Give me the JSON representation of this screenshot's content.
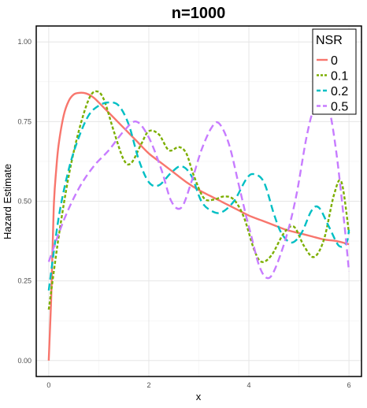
{
  "chart_data": {
    "type": "line",
    "title": "n=1000",
    "xlabel": "x",
    "ylabel": "Hazard Estimate",
    "xlim": [
      -0.25,
      6.25
    ],
    "ylim": [
      -0.05,
      1.05
    ],
    "x_ticks": [
      "0",
      "2",
      "4",
      "6"
    ],
    "y_ticks": [
      "0.00",
      "0.25",
      "0.50",
      "0.75",
      "1.00"
    ],
    "grid": true,
    "legend": {
      "title": "NSR",
      "position": "top-right"
    },
    "series": [
      {
        "name": "0",
        "color": "#F8766D",
        "dash": "solid",
        "points": [
          [
            0.0,
            0.0
          ],
          [
            0.05,
            0.2
          ],
          [
            0.1,
            0.48
          ],
          [
            0.15,
            0.6
          ],
          [
            0.2,
            0.68
          ],
          [
            0.3,
            0.77
          ],
          [
            0.4,
            0.815
          ],
          [
            0.5,
            0.835
          ],
          [
            0.6,
            0.84
          ],
          [
            0.7,
            0.84
          ],
          [
            0.8,
            0.835
          ],
          [
            0.9,
            0.825
          ],
          [
            1.0,
            0.81
          ],
          [
            1.25,
            0.77
          ],
          [
            1.5,
            0.73
          ],
          [
            1.75,
            0.69
          ],
          [
            2.0,
            0.65
          ],
          [
            2.25,
            0.62
          ],
          [
            2.5,
            0.59
          ],
          [
            2.75,
            0.56
          ],
          [
            3.0,
            0.535
          ],
          [
            3.25,
            0.515
          ],
          [
            3.5,
            0.495
          ],
          [
            3.75,
            0.475
          ],
          [
            4.0,
            0.455
          ],
          [
            4.25,
            0.44
          ],
          [
            4.5,
            0.425
          ],
          [
            4.75,
            0.41
          ],
          [
            5.0,
            0.4
          ],
          [
            5.25,
            0.39
          ],
          [
            5.5,
            0.38
          ],
          [
            5.75,
            0.375
          ],
          [
            6.0,
            0.365
          ]
        ]
      },
      {
        "name": "0.1",
        "color": "#7CAE00",
        "dash": "dotted",
        "points": [
          [
            0.0,
            0.16
          ],
          [
            0.2,
            0.39
          ],
          [
            0.4,
            0.58
          ],
          [
            0.6,
            0.72
          ],
          [
            0.8,
            0.82
          ],
          [
            0.95,
            0.845
          ],
          [
            1.1,
            0.82
          ],
          [
            1.3,
            0.72
          ],
          [
            1.5,
            0.63
          ],
          [
            1.65,
            0.62
          ],
          [
            1.85,
            0.68
          ],
          [
            2.0,
            0.72
          ],
          [
            2.2,
            0.71
          ],
          [
            2.4,
            0.66
          ],
          [
            2.6,
            0.67
          ],
          [
            2.75,
            0.65
          ],
          [
            2.9,
            0.58
          ],
          [
            3.1,
            0.51
          ],
          [
            3.3,
            0.505
          ],
          [
            3.5,
            0.515
          ],
          [
            3.7,
            0.505
          ],
          [
            3.9,
            0.45
          ],
          [
            4.1,
            0.35
          ],
          [
            4.25,
            0.31
          ],
          [
            4.45,
            0.33
          ],
          [
            4.7,
            0.4
          ],
          [
            4.9,
            0.42
          ],
          [
            5.1,
            0.36
          ],
          [
            5.3,
            0.325
          ],
          [
            5.5,
            0.38
          ],
          [
            5.7,
            0.52
          ],
          [
            5.85,
            0.56
          ],
          [
            6.0,
            0.4
          ]
        ]
      },
      {
        "name": "0.2",
        "color": "#00BFC4",
        "dash": "dashed",
        "points": [
          [
            0.0,
            0.22
          ],
          [
            0.2,
            0.45
          ],
          [
            0.4,
            0.6
          ],
          [
            0.6,
            0.7
          ],
          [
            0.8,
            0.77
          ],
          [
            1.0,
            0.8
          ],
          [
            1.2,
            0.81
          ],
          [
            1.4,
            0.8
          ],
          [
            1.6,
            0.74
          ],
          [
            1.8,
            0.63
          ],
          [
            2.0,
            0.56
          ],
          [
            2.2,
            0.55
          ],
          [
            2.45,
            0.59
          ],
          [
            2.65,
            0.61
          ],
          [
            2.85,
            0.58
          ],
          [
            3.05,
            0.5
          ],
          [
            3.25,
            0.47
          ],
          [
            3.45,
            0.465
          ],
          [
            3.7,
            0.5
          ],
          [
            3.95,
            0.57
          ],
          [
            4.1,
            0.585
          ],
          [
            4.3,
            0.56
          ],
          [
            4.5,
            0.46
          ],
          [
            4.65,
            0.4
          ],
          [
            4.85,
            0.37
          ],
          [
            5.05,
            0.4
          ],
          [
            5.25,
            0.47
          ],
          [
            5.4,
            0.48
          ],
          [
            5.6,
            0.42
          ],
          [
            5.8,
            0.36
          ],
          [
            5.95,
            0.37
          ],
          [
            6.0,
            0.41
          ]
        ]
      },
      {
        "name": "0.5",
        "color": "#C77CFF",
        "dash": "dashed",
        "points": [
          [
            0.0,
            0.31
          ],
          [
            0.3,
            0.44
          ],
          [
            0.6,
            0.54
          ],
          [
            0.9,
            0.61
          ],
          [
            1.2,
            0.66
          ],
          [
            1.5,
            0.72
          ],
          [
            1.75,
            0.75
          ],
          [
            2.0,
            0.7
          ],
          [
            2.25,
            0.6
          ],
          [
            2.45,
            0.5
          ],
          [
            2.65,
            0.48
          ],
          [
            2.85,
            0.56
          ],
          [
            3.05,
            0.66
          ],
          [
            3.25,
            0.73
          ],
          [
            3.4,
            0.745
          ],
          [
            3.6,
            0.68
          ],
          [
            3.8,
            0.55
          ],
          [
            3.95,
            0.45
          ],
          [
            4.05,
            0.39
          ],
          [
            4.2,
            0.3
          ],
          [
            4.35,
            0.26
          ],
          [
            4.5,
            0.28
          ],
          [
            4.75,
            0.39
          ],
          [
            4.95,
            0.52
          ],
          [
            5.15,
            0.7
          ],
          [
            5.3,
            0.79
          ],
          [
            5.45,
            0.805
          ],
          [
            5.6,
            0.79
          ],
          [
            5.75,
            0.65
          ],
          [
            5.9,
            0.44
          ],
          [
            6.0,
            0.28
          ]
        ]
      }
    ]
  }
}
